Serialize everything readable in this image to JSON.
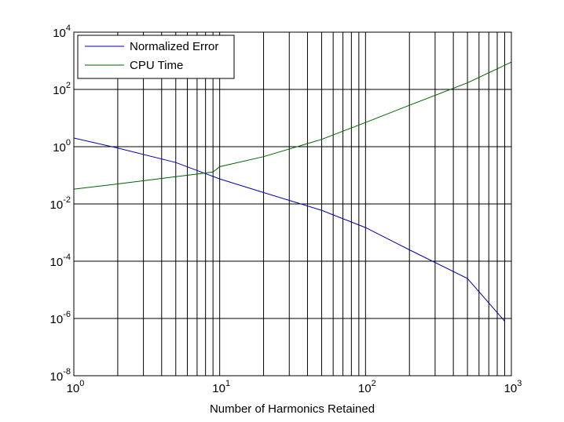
{
  "chart_data": {
    "type": "line",
    "title": "",
    "xlabel": "Number of Harmonics Retained",
    "ylabel": "",
    "xscale": "log",
    "yscale": "log",
    "xlim": [
      1,
      1000
    ],
    "ylim": [
      1e-08,
      10000
    ],
    "grid": true,
    "legend_position": "top-left",
    "x_ticks": [
      {
        "base": "10",
        "exp": "0"
      },
      {
        "base": "10",
        "exp": "1"
      },
      {
        "base": "10",
        "exp": "2"
      },
      {
        "base": "10",
        "exp": "3"
      }
    ],
    "y_ticks": [
      {
        "base": "10",
        "exp": "-8"
      },
      {
        "base": "10",
        "exp": "-6"
      },
      {
        "base": "10",
        "exp": "-4"
      },
      {
        "base": "10",
        "exp": "-2"
      },
      {
        "base": "10",
        "exp": "0"
      },
      {
        "base": "10",
        "exp": "2"
      },
      {
        "base": "10",
        "exp": "4"
      }
    ],
    "series": [
      {
        "name": "Normalized Error",
        "color": "#0000b4",
        "x": [
          1,
          2,
          5,
          10,
          20,
          50,
          100,
          200,
          500,
          900
        ],
        "y": [
          2.0,
          0.9,
          0.28,
          0.075,
          0.025,
          0.006,
          0.0015,
          0.00025,
          2.5e-05,
          8e-07
        ]
      },
      {
        "name": "CPU Time",
        "color": "#006400",
        "x": [
          1,
          2,
          5,
          9,
          10,
          20,
          50,
          100,
          200,
          500,
          1000
        ],
        "y": [
          0.033,
          0.05,
          0.09,
          0.13,
          0.2,
          0.45,
          1.8,
          7,
          28,
          170,
          900
        ]
      }
    ]
  }
}
